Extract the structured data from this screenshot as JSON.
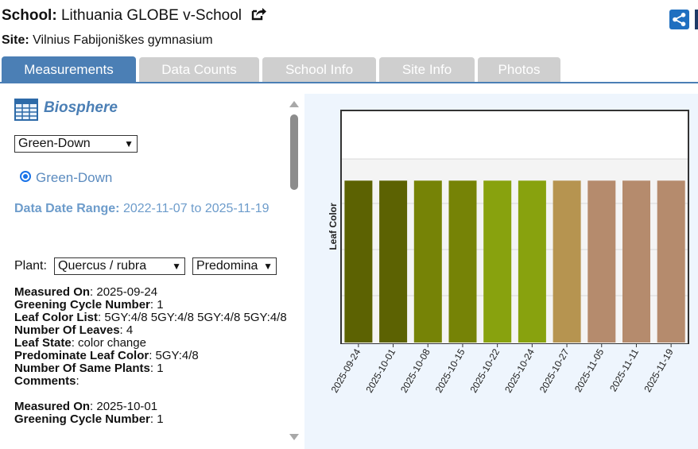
{
  "header": {
    "school_label": "School:",
    "school_name": "Lithuania GLOBE v-School",
    "site_label": "Site:",
    "site_name": "Vilnius Fabijoniškes gymnasium"
  },
  "tabs": [
    {
      "label": "Measurements",
      "active": true
    },
    {
      "label": "Data Counts",
      "active": false
    },
    {
      "label": "School Info",
      "active": false
    },
    {
      "label": "Site Info",
      "active": false
    },
    {
      "label": "Photos",
      "active": false
    }
  ],
  "panel": {
    "title": "Biosphere",
    "protocol_select": "Green-Down",
    "radio_label": "Green-Down",
    "date_range_label": "Data Date Range:",
    "date_range_value": "2022-11-07 to 2025-11-19",
    "plant_label": "Plant:",
    "plant_select": "Quercus / rubra",
    "color_select": "Predomina"
  },
  "records": [
    {
      "fields": [
        {
          "label": "Measured On",
          "value": "2025-09-24"
        },
        {
          "label": "Greening Cycle Number",
          "value": "1"
        },
        {
          "label": "Leaf Color List",
          "value": "5GY:4/8 5GY:4/8 5GY:4/8 5GY:4/8"
        },
        {
          "label": "Number Of Leaves",
          "value": "4"
        },
        {
          "label": "Leaf State",
          "value": "color change"
        },
        {
          "label": "Predominate Leaf Color",
          "value": "5GY:4/8"
        },
        {
          "label": "Number Of Same Plants",
          "value": "1"
        },
        {
          "label": "Comments",
          "value": ""
        }
      ]
    },
    {
      "fields": [
        {
          "label": "Measured On",
          "value": "2025-10-01"
        },
        {
          "label": "Greening Cycle Number",
          "value": "1"
        }
      ]
    }
  ],
  "chart_data": {
    "type": "bar",
    "ylabel": "Leaf Color",
    "categories": [
      "2025-09-24",
      "2025-10-01",
      "2025-10-08",
      "2025-10-15",
      "2025-10-22",
      "2025-10-24",
      "2025-10-27",
      "2025-11-05",
      "2025-11-11",
      "2025-11-19"
    ],
    "values": [
      0.7,
      0.7,
      0.7,
      0.7,
      0.7,
      0.7,
      0.7,
      0.7,
      0.7,
      0.7
    ],
    "ylim": [
      0,
      1
    ],
    "colors": [
      "#5c6202",
      "#5c6202",
      "#768306",
      "#768306",
      "#88a20e",
      "#88a20e",
      "#b69450",
      "#b58b6d",
      "#b58b6d",
      "#b58b6d"
    ],
    "grid": true,
    "legend": "none"
  },
  "colors": {
    "accent": "#4b7fb5",
    "tab_inactive": "#cfcfcf",
    "chart_background": "#eef5fd",
    "share_button": "#1f6fc0"
  },
  "icons": {
    "external_link": "external-link-icon",
    "share": "share-icon",
    "table": "table-icon"
  }
}
